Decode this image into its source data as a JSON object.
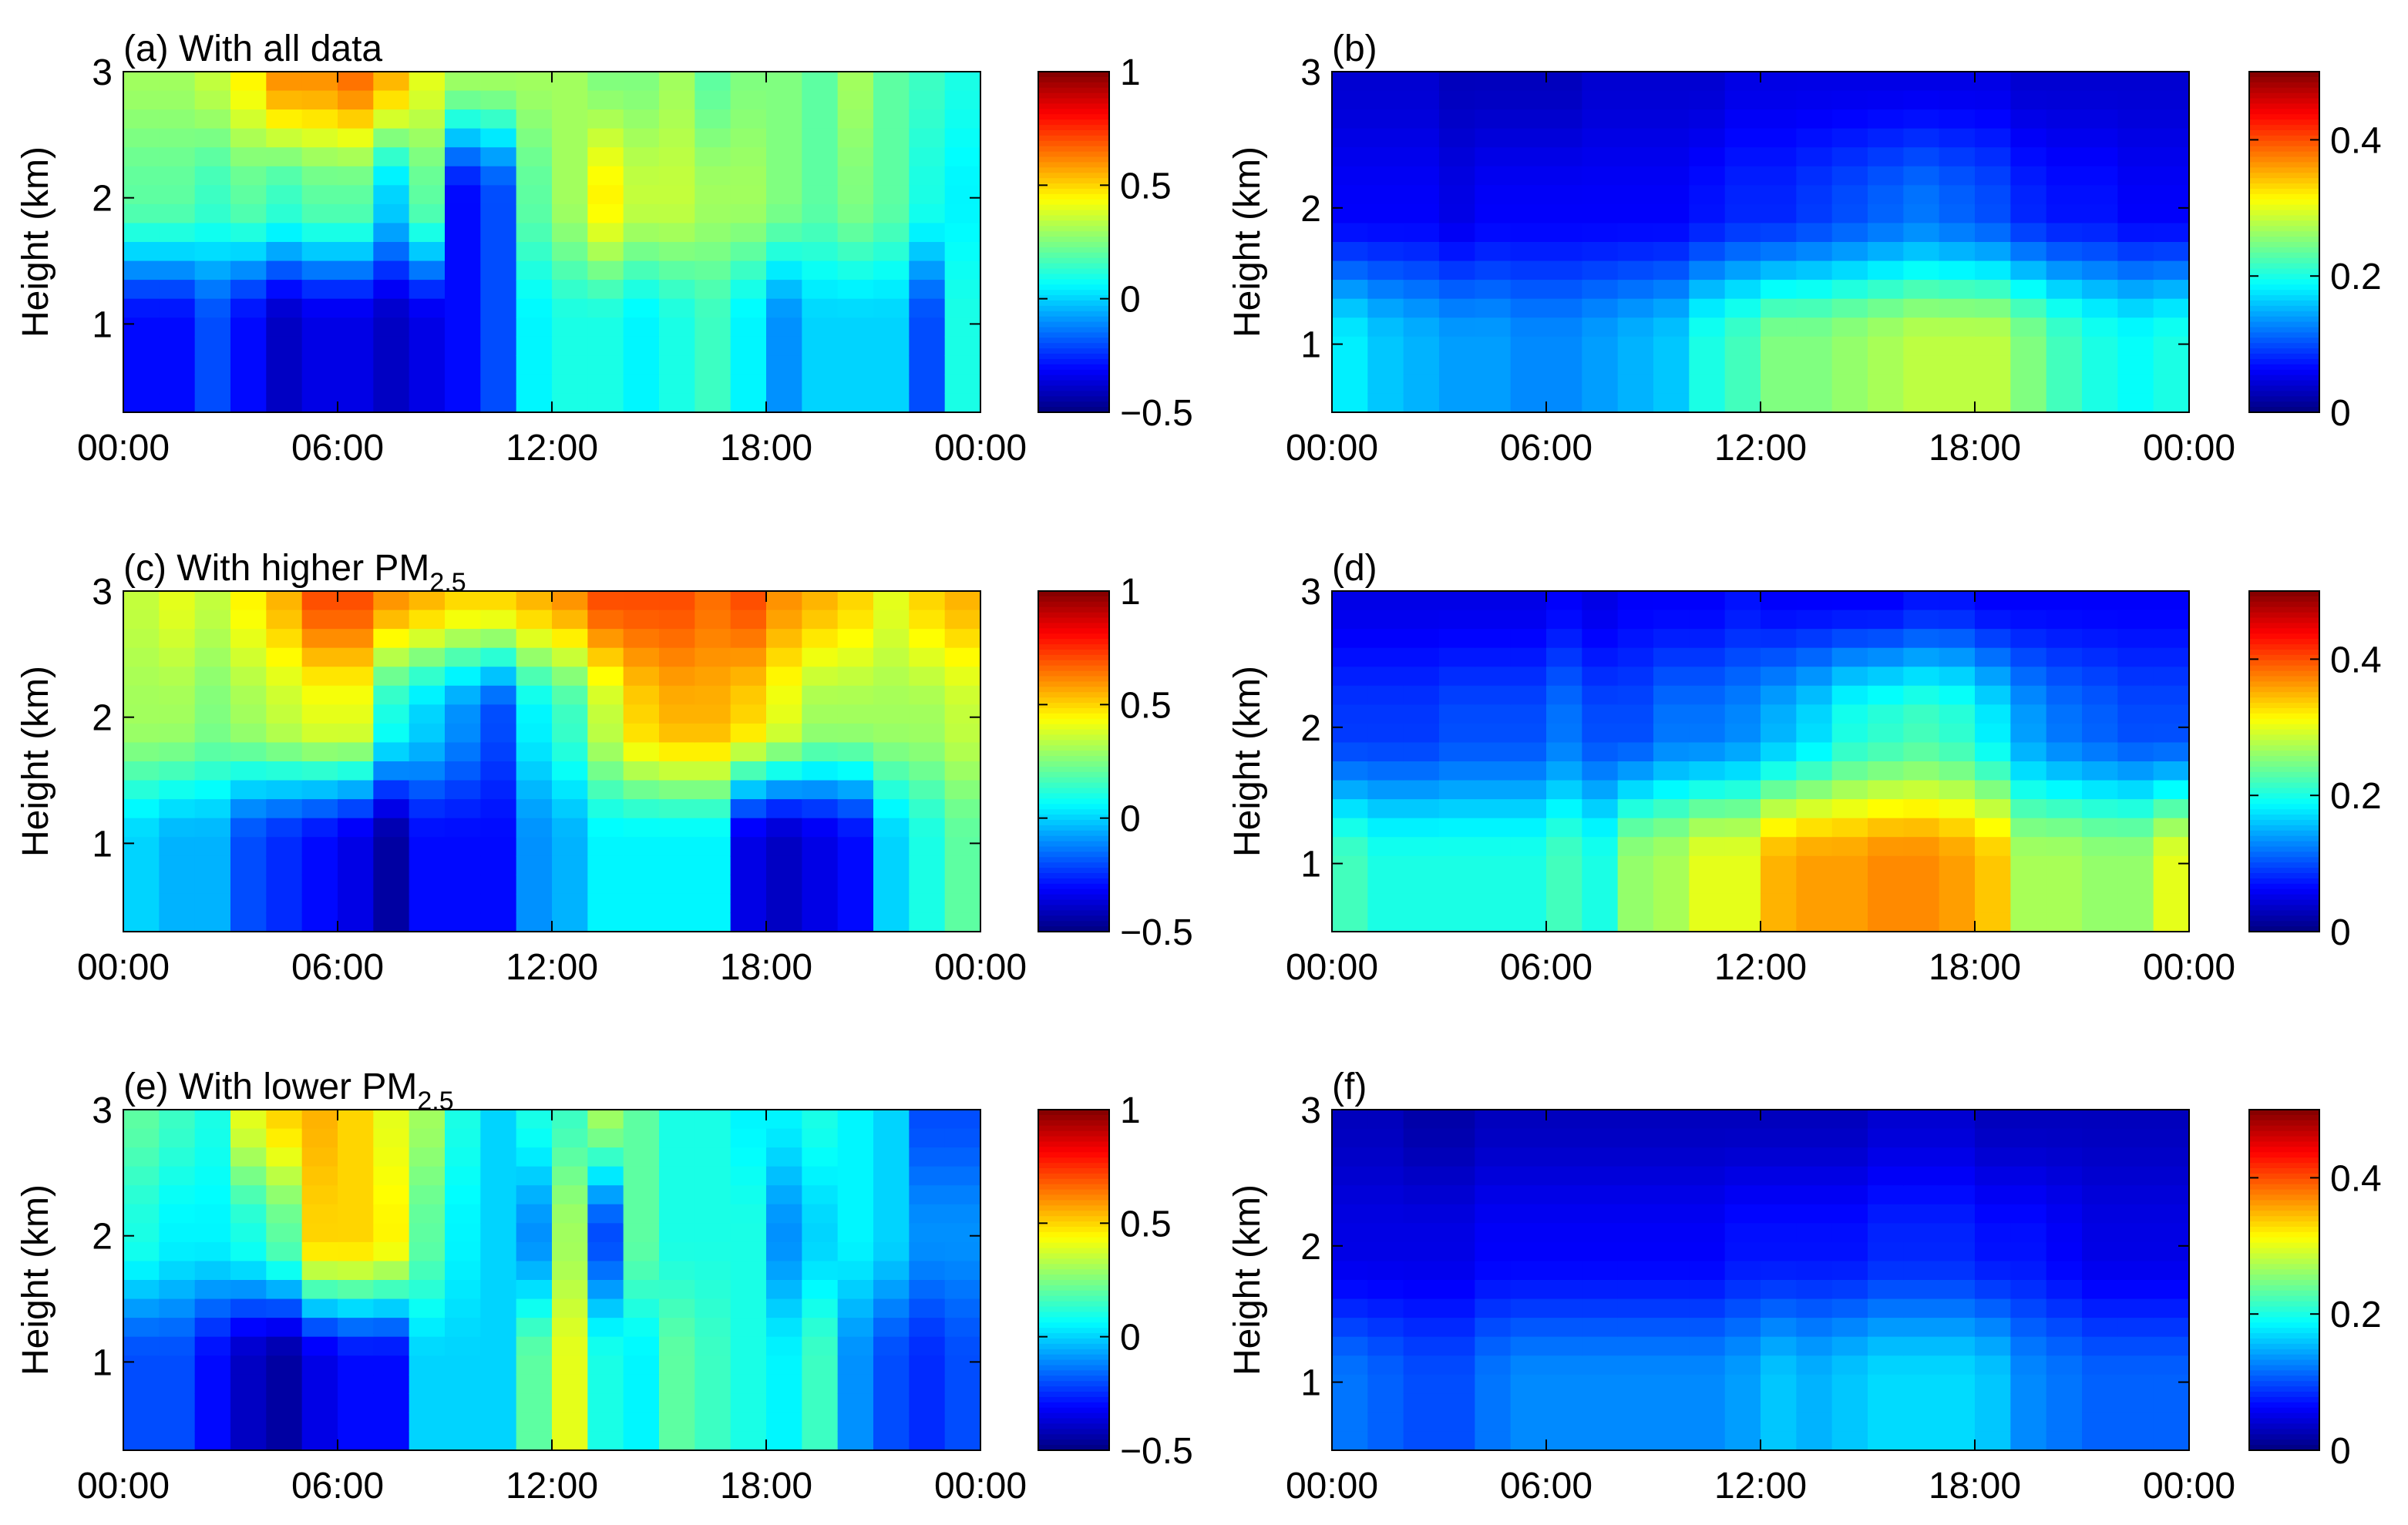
{
  "figure": {
    "caption": ""
  },
  "chart_data": [
    {
      "id": "a",
      "type": "heatmap",
      "title": "(a) With all data",
      "title_subscript": "",
      "xlabel": "",
      "ylabel": "Height (km)",
      "xticks": [
        "00:00",
        "06:00",
        "12:00",
        "18:00",
        "00:00"
      ],
      "yticks": [
        {
          "value": 1,
          "label": "1"
        },
        {
          "value": 2,
          "label": "2"
        },
        {
          "value": 3,
          "label": "3"
        }
      ],
      "ylim": [
        0.3,
        3.0
      ],
      "colorbar": {
        "min": -0.5,
        "max": 1.0,
        "ticks": [
          {
            "value": 1,
            "label": "1"
          },
          {
            "value": 0.5,
            "label": "0.5"
          },
          {
            "value": 0,
            "label": "0"
          },
          {
            "value": -0.5,
            "label": "−0.5"
          }
        ]
      },
      "z_columns_24h_by_layer_1km_2km_3km": [
        [
          -0.3,
          0.2,
          0.3
        ],
        [
          -0.3,
          0.2,
          0.3
        ],
        [
          -0.2,
          0.15,
          0.35
        ],
        [
          -0.3,
          0.2,
          0.45
        ],
        [
          -0.4,
          0.15,
          0.6
        ],
        [
          -0.35,
          0.2,
          0.6
        ],
        [
          -0.35,
          0.2,
          0.65
        ],
        [
          -0.4,
          0.0,
          0.55
        ],
        [
          -0.35,
          0.2,
          0.4
        ],
        [
          -0.3,
          -0.3,
          0.3
        ],
        [
          -0.2,
          -0.2,
          0.3
        ],
        [
          0.05,
          0.2,
          0.3
        ],
        [
          0.1,
          0.3,
          0.3
        ],
        [
          0.1,
          0.45,
          0.25
        ],
        [
          0.05,
          0.35,
          0.25
        ],
        [
          0.1,
          0.35,
          0.3
        ],
        [
          0.15,
          0.3,
          0.2
        ],
        [
          0.05,
          0.3,
          0.25
        ],
        [
          -0.1,
          0.25,
          0.25
        ],
        [
          0.0,
          0.2,
          0.2
        ],
        [
          0.0,
          0.25,
          0.3
        ],
        [
          0.0,
          0.2,
          0.2
        ],
        [
          -0.2,
          0.1,
          0.15
        ],
        [
          0.1,
          0.05,
          0.1
        ]
      ]
    },
    {
      "id": "b",
      "type": "heatmap",
      "title": "(b)",
      "title_subscript": "",
      "xlabel": "",
      "ylabel": "Height (km)",
      "xticks": [
        "00:00",
        "06:00",
        "12:00",
        "18:00",
        "00:00"
      ],
      "yticks": [
        {
          "value": 1,
          "label": "1"
        },
        {
          "value": 2,
          "label": "2"
        },
        {
          "value": 3,
          "label": "3"
        }
      ],
      "ylim": [
        0.5,
        3.0
      ],
      "colorbar": {
        "min": 0.0,
        "max": 0.5,
        "ticks": [
          {
            "value": 0.4,
            "label": "0.4"
          },
          {
            "value": 0.2,
            "label": "0.2"
          },
          {
            "value": 0,
            "label": "0"
          }
        ]
      },
      "z_columns_24h_by_layer_1km_2km_3km": [
        [
          0.18,
          0.06,
          0.04
        ],
        [
          0.16,
          0.06,
          0.04
        ],
        [
          0.15,
          0.06,
          0.04
        ],
        [
          0.14,
          0.05,
          0.03
        ],
        [
          0.14,
          0.06,
          0.03
        ],
        [
          0.13,
          0.06,
          0.03
        ],
        [
          0.13,
          0.06,
          0.03
        ],
        [
          0.14,
          0.06,
          0.04
        ],
        [
          0.15,
          0.06,
          0.04
        ],
        [
          0.16,
          0.06,
          0.04
        ],
        [
          0.2,
          0.07,
          0.04
        ],
        [
          0.22,
          0.08,
          0.05
        ],
        [
          0.25,
          0.08,
          0.05
        ],
        [
          0.25,
          0.09,
          0.05
        ],
        [
          0.26,
          0.1,
          0.05
        ],
        [
          0.27,
          0.11,
          0.05
        ],
        [
          0.28,
          0.12,
          0.05
        ],
        [
          0.28,
          0.11,
          0.05
        ],
        [
          0.28,
          0.1,
          0.05
        ],
        [
          0.25,
          0.08,
          0.04
        ],
        [
          0.22,
          0.07,
          0.04
        ],
        [
          0.2,
          0.07,
          0.04
        ],
        [
          0.19,
          0.06,
          0.04
        ],
        [
          0.2,
          0.06,
          0.04
        ]
      ]
    },
    {
      "id": "c",
      "type": "heatmap",
      "title": "(c) With higher PM",
      "title_subscript": "2.5",
      "xlabel": "",
      "ylabel": "Height (km)",
      "xticks": [
        "00:00",
        "06:00",
        "12:00",
        "18:00",
        "00:00"
      ],
      "yticks": [
        {
          "value": 1,
          "label": "1"
        },
        {
          "value": 2,
          "label": "2"
        },
        {
          "value": 3,
          "label": "3"
        }
      ],
      "ylim": [
        0.3,
        3.0
      ],
      "colorbar": {
        "min": -0.5,
        "max": 1.0,
        "ticks": [
          {
            "value": 1,
            "label": "1"
          },
          {
            "value": 0.5,
            "label": "0.5"
          },
          {
            "value": 0,
            "label": "0"
          },
          {
            "value": -0.5,
            "label": "−0.5"
          }
        ]
      },
      "z_columns_24h_by_layer_1km_2km_3km": [
        [
          0.0,
          0.3,
          0.35
        ],
        [
          -0.05,
          0.3,
          0.4
        ],
        [
          -0.05,
          0.25,
          0.35
        ],
        [
          -0.2,
          0.3,
          0.45
        ],
        [
          -0.25,
          0.35,
          0.55
        ],
        [
          -0.3,
          0.4,
          0.7
        ],
        [
          -0.35,
          0.4,
          0.7
        ],
        [
          -0.45,
          0.1,
          0.6
        ],
        [
          -0.3,
          0.0,
          0.55
        ],
        [
          -0.3,
          -0.1,
          0.5
        ],
        [
          -0.3,
          -0.2,
          0.5
        ],
        [
          -0.1,
          0.05,
          0.55
        ],
        [
          -0.05,
          0.15,
          0.6
        ],
        [
          0.05,
          0.35,
          0.7
        ],
        [
          0.05,
          0.5,
          0.7
        ],
        [
          0.05,
          0.55,
          0.7
        ],
        [
          0.05,
          0.55,
          0.65
        ],
        [
          -0.35,
          0.5,
          0.7
        ],
        [
          -0.4,
          0.4,
          0.6
        ],
        [
          -0.35,
          0.3,
          0.55
        ],
        [
          -0.3,
          0.3,
          0.5
        ],
        [
          0.0,
          0.3,
          0.4
        ],
        [
          0.1,
          0.3,
          0.5
        ],
        [
          0.2,
          0.35,
          0.55
        ]
      ]
    },
    {
      "id": "d",
      "type": "heatmap",
      "title": "(d)",
      "title_subscript": "",
      "xlabel": "",
      "ylabel": "Height (km)",
      "xticks": [
        "00:00",
        "06:00",
        "12:00",
        "18:00",
        "00:00"
      ],
      "yticks": [
        {
          "value": 1,
          "label": "1"
        },
        {
          "value": 2,
          "label": "2"
        },
        {
          "value": 3,
          "label": "3"
        }
      ],
      "ylim": [
        0.5,
        3.0
      ],
      "colorbar": {
        "min": 0.0,
        "max": 0.5,
        "ticks": [
          {
            "value": 0.4,
            "label": "0.4"
          },
          {
            "value": 0.2,
            "label": "0.2"
          },
          {
            "value": 0,
            "label": "0"
          }
        ]
      },
      "z_columns_24h_by_layer_1km_2km_3km": [
        [
          0.22,
          0.09,
          0.05
        ],
        [
          0.2,
          0.09,
          0.05
        ],
        [
          0.2,
          0.09,
          0.05
        ],
        [
          0.2,
          0.1,
          0.05
        ],
        [
          0.2,
          0.1,
          0.05
        ],
        [
          0.2,
          0.1,
          0.05
        ],
        [
          0.22,
          0.12,
          0.06
        ],
        [
          0.2,
          0.1,
          0.05
        ],
        [
          0.26,
          0.1,
          0.06
        ],
        [
          0.27,
          0.12,
          0.06
        ],
        [
          0.3,
          0.12,
          0.06
        ],
        [
          0.3,
          0.13,
          0.07
        ],
        [
          0.35,
          0.15,
          0.06
        ],
        [
          0.36,
          0.17,
          0.06
        ],
        [
          0.36,
          0.2,
          0.06
        ],
        [
          0.37,
          0.21,
          0.06
        ],
        [
          0.37,
          0.22,
          0.07
        ],
        [
          0.36,
          0.21,
          0.07
        ],
        [
          0.34,
          0.18,
          0.06
        ],
        [
          0.27,
          0.14,
          0.06
        ],
        [
          0.27,
          0.12,
          0.06
        ],
        [
          0.26,
          0.11,
          0.06
        ],
        [
          0.26,
          0.1,
          0.06
        ],
        [
          0.3,
          0.1,
          0.06
        ]
      ]
    },
    {
      "id": "e",
      "type": "heatmap",
      "title": "(e) With lower PM",
      "title_subscript": "2.5",
      "xlabel": "",
      "ylabel": "Height (km)",
      "xticks": [
        "00:00",
        "06:00",
        "12:00",
        "18:00",
        "00:00"
      ],
      "yticks": [
        {
          "value": 1,
          "label": "1"
        },
        {
          "value": 2,
          "label": "2"
        },
        {
          "value": 3,
          "label": "3"
        }
      ],
      "ylim": [
        0.3,
        3.0
      ],
      "colorbar": {
        "min": -0.5,
        "max": 1.0,
        "ticks": [
          {
            "value": 1,
            "label": "1"
          },
          {
            "value": 0.5,
            "label": "0.5"
          },
          {
            "value": 0,
            "label": "0"
          },
          {
            "value": -0.5,
            "label": "−0.5"
          }
        ]
      },
      "z_columns_24h_by_layer_1km_2km_3km": [
        [
          -0.2,
          0.1,
          0.2
        ],
        [
          -0.2,
          0.05,
          0.15
        ],
        [
          -0.3,
          0.05,
          0.1
        ],
        [
          -0.4,
          0.1,
          0.4
        ],
        [
          -0.45,
          0.2,
          0.5
        ],
        [
          -0.35,
          0.5,
          0.55
        ],
        [
          -0.3,
          0.5,
          0.5
        ],
        [
          -0.3,
          0.45,
          0.4
        ],
        [
          0.0,
          0.2,
          0.3
        ],
        [
          0.0,
          0.05,
          0.1
        ],
        [
          0.0,
          0.0,
          0.0
        ],
        [
          0.2,
          -0.1,
          0.1
        ],
        [
          0.4,
          0.3,
          0.15
        ],
        [
          0.1,
          -0.2,
          0.3
        ],
        [
          0.05,
          0.2,
          0.2
        ],
        [
          0.2,
          0.1,
          0.1
        ],
        [
          0.15,
          0.1,
          0.1
        ],
        [
          0.1,
          0.1,
          0.05
        ],
        [
          0.05,
          -0.1,
          0.05
        ],
        [
          0.15,
          0.0,
          0.1
        ],
        [
          -0.1,
          0.05,
          0.05
        ],
        [
          -0.2,
          0.0,
          0.0
        ],
        [
          -0.25,
          -0.1,
          -0.2
        ],
        [
          -0.2,
          -0.1,
          -0.2
        ]
      ]
    },
    {
      "id": "f",
      "type": "heatmap",
      "title": "(f)",
      "title_subscript": "",
      "xlabel": "",
      "ylabel": "Height (km)",
      "xticks": [
        "00:00",
        "06:00",
        "12:00",
        "18:00",
        "00:00"
      ],
      "yticks": [
        {
          "value": 1,
          "label": "1"
        },
        {
          "value": 2,
          "label": "2"
        },
        {
          "value": 3,
          "label": "3"
        }
      ],
      "ylim": [
        0.5,
        3.0
      ],
      "colorbar": {
        "min": 0.0,
        "max": 0.5,
        "ticks": [
          {
            "value": 0.4,
            "label": "0.4"
          },
          {
            "value": 0.2,
            "label": "0.2"
          },
          {
            "value": 0,
            "label": "0"
          }
        ]
      },
      "z_columns_24h_by_layer_1km_2km_3km": [
        [
          0.12,
          0.05,
          0.03
        ],
        [
          0.11,
          0.05,
          0.03
        ],
        [
          0.1,
          0.05,
          0.02
        ],
        [
          0.1,
          0.05,
          0.02
        ],
        [
          0.12,
          0.06,
          0.03
        ],
        [
          0.13,
          0.06,
          0.03
        ],
        [
          0.13,
          0.06,
          0.03
        ],
        [
          0.13,
          0.06,
          0.03
        ],
        [
          0.13,
          0.06,
          0.03
        ],
        [
          0.13,
          0.06,
          0.03
        ],
        [
          0.13,
          0.06,
          0.03
        ],
        [
          0.14,
          0.07,
          0.03
        ],
        [
          0.16,
          0.07,
          0.03
        ],
        [
          0.15,
          0.07,
          0.03
        ],
        [
          0.16,
          0.07,
          0.03
        ],
        [
          0.17,
          0.08,
          0.04
        ],
        [
          0.17,
          0.08,
          0.04
        ],
        [
          0.17,
          0.08,
          0.04
        ],
        [
          0.16,
          0.07,
          0.03
        ],
        [
          0.13,
          0.07,
          0.03
        ],
        [
          0.12,
          0.06,
          0.03
        ],
        [
          0.11,
          0.05,
          0.03
        ],
        [
          0.11,
          0.05,
          0.03
        ],
        [
          0.11,
          0.05,
          0.03
        ]
      ]
    }
  ]
}
